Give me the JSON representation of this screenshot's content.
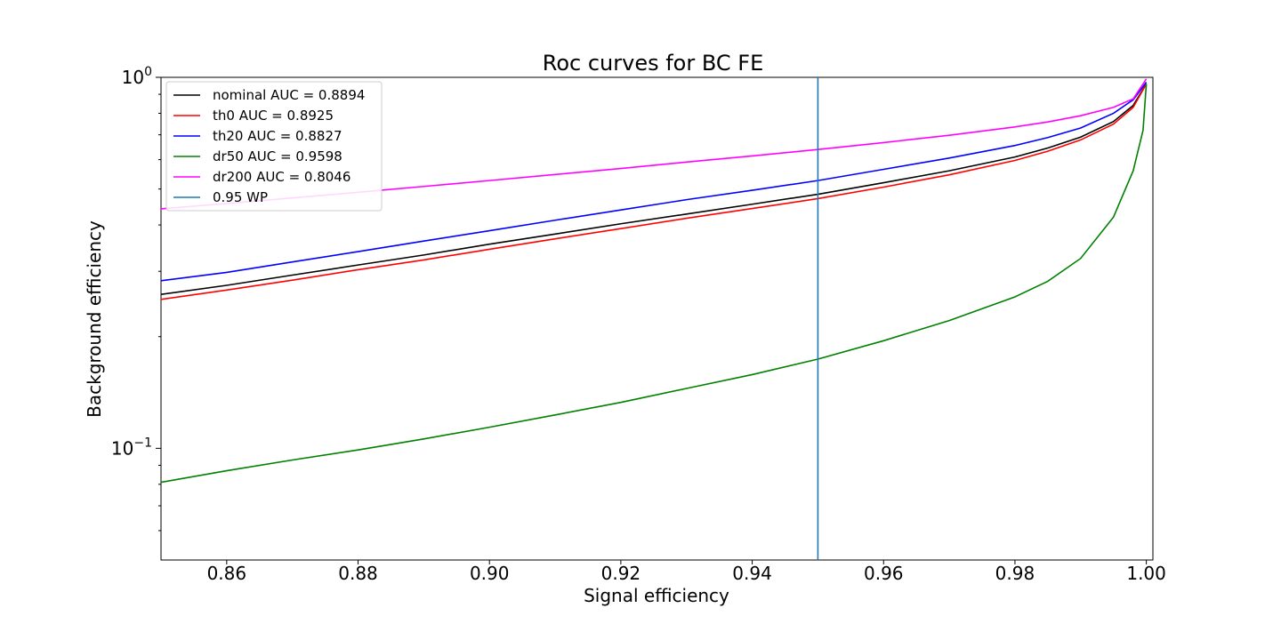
{
  "chart_data": {
    "type": "line",
    "title": "Roc curves for BC FE",
    "xlabel": "Signal efficiency",
    "ylabel": "Background efficiency",
    "xlim": [
      0.85,
      1.001
    ],
    "ylim": [
      0.05,
      1.0
    ],
    "yscale": "log",
    "xticks": [
      0.86,
      0.88,
      0.9,
      0.92,
      0.94,
      0.96,
      0.98,
      1.0
    ],
    "xtick_labels": [
      "0.86",
      "0.88",
      "0.90",
      "0.92",
      "0.94",
      "0.96",
      "0.98",
      "1.00"
    ],
    "ytick_labels": [
      {
        "value": 1.0,
        "base": "10",
        "exp": "0"
      },
      {
        "value": 0.1,
        "base": "10",
        "exp": "−1"
      }
    ],
    "legend_position": "upper-left",
    "series": [
      {
        "name": "nominal AUC = 0.8894",
        "color": "#000000",
        "x": [
          0.85,
          0.86,
          0.87,
          0.88,
          0.89,
          0.9,
          0.91,
          0.92,
          0.93,
          0.94,
          0.95,
          0.96,
          0.97,
          0.98,
          0.985,
          0.99,
          0.995,
          0.998,
          1.0
        ],
        "y": [
          0.26,
          0.275,
          0.293,
          0.312,
          0.332,
          0.355,
          0.378,
          0.403,
          0.428,
          0.455,
          0.484,
          0.52,
          0.56,
          0.61,
          0.645,
          0.69,
          0.76,
          0.84,
          0.96
        ]
      },
      {
        "name": "th0 AUC = 0.8925",
        "color": "#ff0000",
        "x": [
          0.85,
          0.86,
          0.87,
          0.88,
          0.89,
          0.9,
          0.91,
          0.92,
          0.93,
          0.94,
          0.95,
          0.96,
          0.97,
          0.98,
          0.985,
          0.99,
          0.995,
          0.998,
          1.0
        ],
        "y": [
          0.252,
          0.267,
          0.284,
          0.303,
          0.322,
          0.344,
          0.367,
          0.391,
          0.417,
          0.443,
          0.471,
          0.506,
          0.546,
          0.597,
          0.632,
          0.678,
          0.748,
          0.83,
          0.96
        ]
      },
      {
        "name": "th20 AUC = 0.8827",
        "color": "#0000ff",
        "x": [
          0.85,
          0.86,
          0.87,
          0.88,
          0.89,
          0.9,
          0.91,
          0.92,
          0.93,
          0.94,
          0.95,
          0.96,
          0.97,
          0.98,
          0.985,
          0.99,
          0.995,
          0.998,
          1.0
        ],
        "y": [
          0.283,
          0.298,
          0.318,
          0.339,
          0.362,
          0.386,
          0.412,
          0.439,
          0.468,
          0.496,
          0.527,
          0.565,
          0.606,
          0.655,
          0.688,
          0.73,
          0.8,
          0.87,
          0.97
        ]
      },
      {
        "name": "dr50 AUC = 0.9598",
        "color": "#008000",
        "x": [
          0.85,
          0.86,
          0.87,
          0.88,
          0.89,
          0.9,
          0.91,
          0.92,
          0.93,
          0.94,
          0.95,
          0.96,
          0.97,
          0.98,
          0.985,
          0.99,
          0.995,
          0.998,
          0.9995,
          1.0
        ],
        "y": [
          0.081,
          0.087,
          0.093,
          0.099,
          0.106,
          0.114,
          0.123,
          0.133,
          0.145,
          0.158,
          0.174,
          0.195,
          0.221,
          0.256,
          0.282,
          0.325,
          0.42,
          0.56,
          0.72,
          0.96
        ]
      },
      {
        "name": "dr200 AUC = 0.8046",
        "color": "#ff00ff",
        "x": [
          0.85,
          0.86,
          0.87,
          0.88,
          0.89,
          0.9,
          0.91,
          0.92,
          0.93,
          0.94,
          0.95,
          0.96,
          0.97,
          0.98,
          0.985,
          0.99,
          0.995,
          0.998,
          1.0
        ],
        "y": [
          0.442,
          0.457,
          0.473,
          0.49,
          0.508,
          0.527,
          0.547,
          0.568,
          0.591,
          0.614,
          0.639,
          0.667,
          0.698,
          0.735,
          0.758,
          0.788,
          0.83,
          0.875,
          0.99
        ]
      }
    ],
    "vlines": [
      {
        "name": "0.95 WP",
        "x": 0.95,
        "color": "#1f77b4"
      }
    ]
  }
}
